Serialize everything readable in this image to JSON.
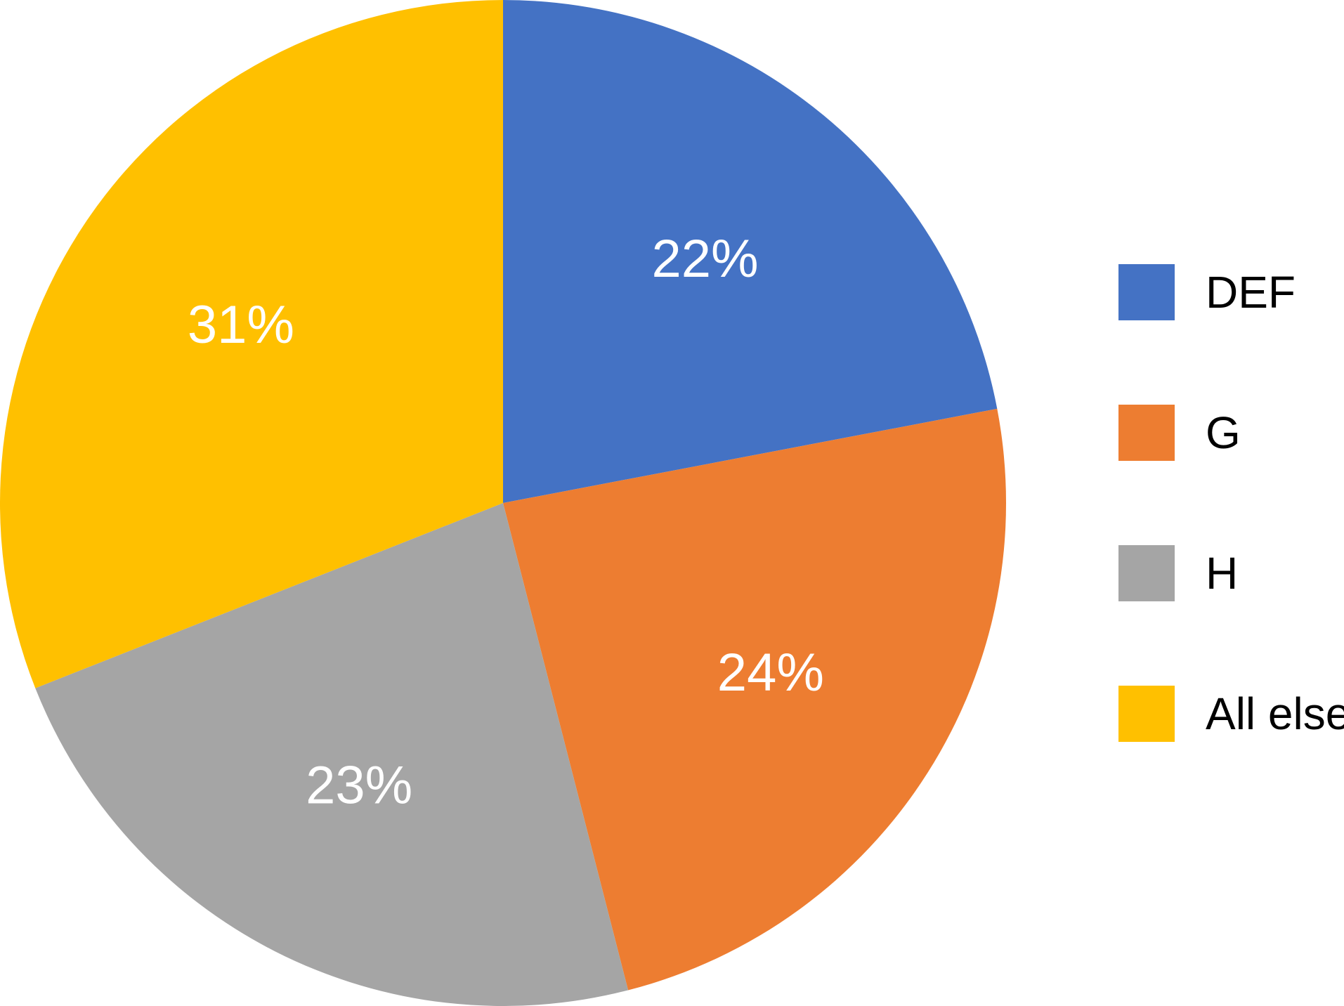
{
  "chart_data": {
    "type": "pie",
    "title": "",
    "start": "top",
    "direction": "clockwise",
    "legend_position": "right",
    "slices": [
      {
        "name": "DEF",
        "value": 22,
        "label": "22%",
        "color": "#4472C4"
      },
      {
        "name": "G",
        "value": 24,
        "label": "24%",
        "color": "#ED7D31"
      },
      {
        "name": "H",
        "value": 23,
        "label": "23%",
        "color": "#A5A5A5"
      },
      {
        "name": "All else",
        "value": 31,
        "label": "31%",
        "color": "#FFC000"
      }
    ]
  }
}
